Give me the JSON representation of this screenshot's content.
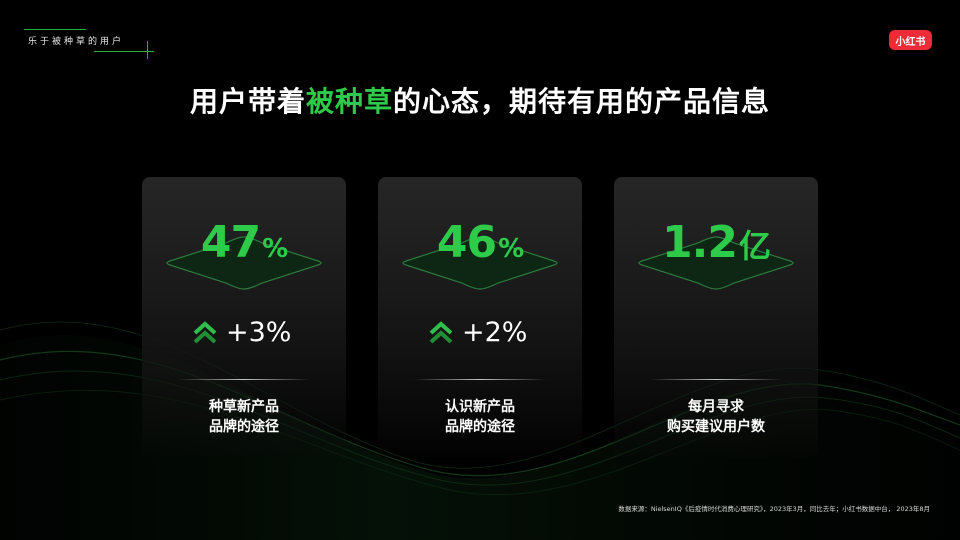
{
  "header": {
    "tag_text": "乐于被种草的用户",
    "logo_text": "小红书",
    "logo_color": "#ef2a39"
  },
  "headline": {
    "part1": "用户带着",
    "highlight": "被种草",
    "part2": "的心态，期待有用的产品信息",
    "highlight_color": "#2ecb4a"
  },
  "stats": [
    {
      "number": "47",
      "unit": "%",
      "change_icon": "double-chevron-up-icon",
      "change": "+3%",
      "caption_line1": "种草新产品",
      "caption_line2": "品牌的途径"
    },
    {
      "number": "46",
      "unit": "%",
      "change_icon": "double-chevron-up-icon",
      "change": "+2%",
      "caption_line1": "认识新产品",
      "caption_line2": "品牌的途径"
    },
    {
      "number": "1.2",
      "unit": "亿",
      "caption_line1": "每月寻求",
      "caption_line2": "购买建议用户数"
    }
  ],
  "footer": {
    "source": "数据来源：NielsenIQ《后疫情时代消费心理研究》，2023年3月，同比去年；小红书数据中台， 2023年8月"
  }
}
